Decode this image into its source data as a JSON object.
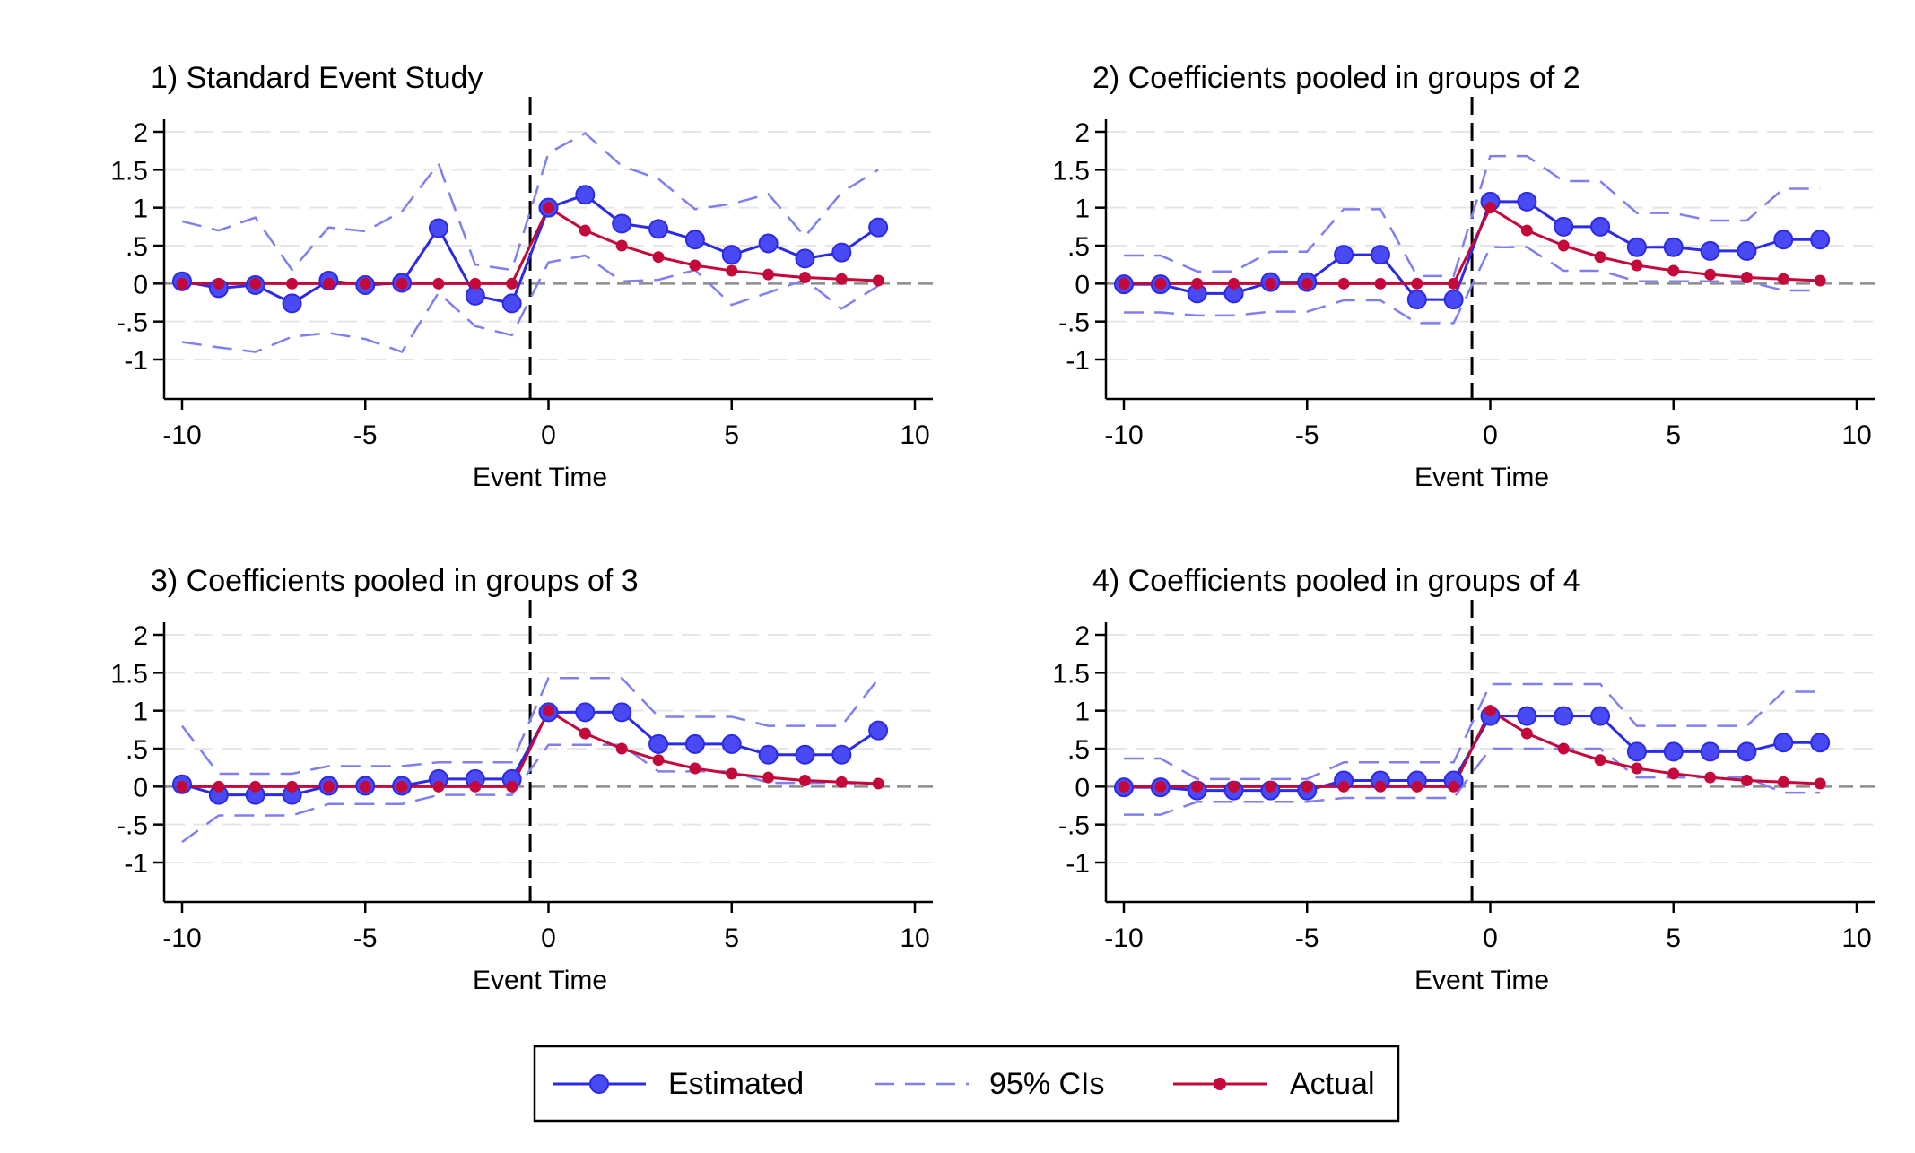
{
  "legend": {
    "items": [
      {
        "label": "Estimated",
        "color": "#2a2ae8",
        "style": "line-marker-large"
      },
      {
        "label": "95% CIs",
        "color": "#7f7ff2",
        "style": "dashed"
      },
      {
        "label": "Actual",
        "color": "#c4083a",
        "style": "line-marker-small"
      }
    ]
  },
  "colors": {
    "estimated": "#2a2ae8",
    "estimated_fill": "#4a4af5",
    "ci": "#7f7ff2",
    "actual": "#c4083a",
    "zero_line": "#8c8c8c",
    "grid": "#e6e6e6",
    "event_line": "#000000"
  },
  "chart_data": [
    {
      "type": "line",
      "title": "1) Standard Event Study",
      "xlabel": "Event Time",
      "ylabel": "",
      "xlim": [
        -10,
        10
      ],
      "ylim": [
        -1,
        2
      ],
      "xticks": [
        -10,
        -5,
        0,
        5,
        10
      ],
      "xtick_labels": [
        "-10",
        "-5",
        "0",
        "5",
        "10"
      ],
      "yticks": [
        -1,
        -0.5,
        0,
        0.5,
        1,
        1.5,
        2
      ],
      "ytick_labels": [
        "-1",
        "-.5",
        "0",
        ".5",
        "1",
        "1.5",
        "2"
      ],
      "event_line_x": -0.5,
      "grid": true,
      "x": [
        -10,
        -9,
        -8,
        -7,
        -6,
        -5,
        -4,
        -3,
        -2,
        -1,
        0,
        1,
        2,
        3,
        4,
        5,
        6,
        7,
        8,
        9
      ],
      "series": [
        {
          "name": "Estimated",
          "values": [
            0.03,
            -0.06,
            -0.02,
            -0.26,
            0.04,
            -0.02,
            0.01,
            0.73,
            -0.16,
            -0.26,
            1.0,
            1.17,
            0.79,
            0.72,
            0.58,
            0.38,
            0.53,
            0.33,
            0.41,
            0.74
          ]
        },
        {
          "name": "95% CIs",
          "values": [
            0.82,
            0.7,
            0.87,
            0.18,
            0.74,
            0.69,
            0.95,
            1.58,
            0.25,
            0.18,
            1.72,
            1.98,
            1.55,
            1.38,
            0.98,
            1.05,
            1.18,
            0.62,
            1.2,
            1.5
          ]
        },
        {
          "name": "95% CIs",
          "values": [
            -0.77,
            -0.84,
            -0.9,
            -0.7,
            -0.65,
            -0.73,
            -0.9,
            -0.12,
            -0.56,
            -0.68,
            0.28,
            0.37,
            0.03,
            0.05,
            0.18,
            -0.28,
            -0.12,
            0.05,
            -0.33,
            -0.03
          ]
        },
        {
          "name": "Actual",
          "values": [
            0,
            0,
            0,
            0,
            0,
            0,
            0,
            0,
            0,
            0,
            1.0,
            0.7,
            0.5,
            0.35,
            0.24,
            0.17,
            0.12,
            0.08,
            0.06,
            0.04
          ]
        }
      ]
    },
    {
      "type": "line",
      "title": "2) Coefficients pooled in groups of 2",
      "xlabel": "Event Time",
      "ylabel": "",
      "xlim": [
        -10,
        10
      ],
      "ylim": [
        -1,
        2
      ],
      "xticks": [
        -10,
        -5,
        0,
        5,
        10
      ],
      "xtick_labels": [
        "-10",
        "-5",
        "0",
        "5",
        "10"
      ],
      "yticks": [
        -1,
        -0.5,
        0,
        0.5,
        1,
        1.5,
        2
      ],
      "ytick_labels": [
        "-1",
        "-.5",
        "0",
        ".5",
        "1",
        "1.5",
        "2"
      ],
      "event_line_x": -0.5,
      "grid": true,
      "x": [
        -10,
        -9,
        -8,
        -7,
        -6,
        -5,
        -4,
        -3,
        -2,
        -1,
        0,
        1,
        2,
        3,
        4,
        5,
        6,
        7,
        8,
        9
      ],
      "series": [
        {
          "name": "Estimated",
          "values": [
            -0.01,
            -0.01,
            -0.13,
            -0.13,
            0.02,
            0.02,
            0.38,
            0.38,
            -0.21,
            -0.21,
            1.08,
            1.08,
            0.75,
            0.75,
            0.48,
            0.48,
            0.43,
            0.43,
            0.58,
            0.58
          ]
        },
        {
          "name": "95% CIs",
          "values": [
            0.37,
            0.37,
            0.16,
            0.16,
            0.42,
            0.42,
            0.98,
            0.98,
            0.1,
            0.1,
            1.68,
            1.68,
            1.35,
            1.35,
            0.93,
            0.93,
            0.83,
            0.83,
            1.25,
            1.25
          ]
        },
        {
          "name": "95% CIs",
          "values": [
            -0.38,
            -0.38,
            -0.42,
            -0.42,
            -0.37,
            -0.37,
            -0.22,
            -0.22,
            -0.52,
            -0.52,
            0.48,
            0.48,
            0.17,
            0.17,
            0.03,
            0.03,
            0.03,
            0.03,
            -0.09,
            -0.09
          ]
        },
        {
          "name": "Actual",
          "values": [
            0,
            0,
            0,
            0,
            0,
            0,
            0,
            0,
            0,
            0,
            1.0,
            0.7,
            0.5,
            0.35,
            0.24,
            0.17,
            0.12,
            0.08,
            0.06,
            0.04
          ]
        }
      ]
    },
    {
      "type": "line",
      "title": "3) Coefficients pooled in groups of 3",
      "xlabel": "Event Time",
      "ylabel": "",
      "xlim": [
        -10,
        10
      ],
      "ylim": [
        -1,
        2
      ],
      "xticks": [
        -10,
        -5,
        0,
        5,
        10
      ],
      "xtick_labels": [
        "-10",
        "-5",
        "0",
        "5",
        "10"
      ],
      "yticks": [
        -1,
        -0.5,
        0,
        0.5,
        1,
        1.5,
        2
      ],
      "ytick_labels": [
        "-1",
        "-.5",
        "0",
        ".5",
        "1",
        "1.5",
        "2"
      ],
      "event_line_x": -0.5,
      "grid": true,
      "x": [
        -10,
        -9,
        -8,
        -7,
        -6,
        -5,
        -4,
        -3,
        -2,
        -1,
        0,
        1,
        2,
        3,
        4,
        5,
        6,
        7,
        8,
        9
      ],
      "series": [
        {
          "name": "Estimated",
          "values": [
            0.03,
            -0.11,
            -0.11,
            -0.11,
            0.01,
            0.01,
            0.01,
            0.1,
            0.1,
            0.1,
            0.98,
            0.98,
            0.98,
            0.56,
            0.56,
            0.56,
            0.42,
            0.42,
            0.42,
            0.74
          ]
        },
        {
          "name": "95% CIs",
          "values": [
            0.8,
            0.17,
            0.17,
            0.17,
            0.27,
            0.27,
            0.27,
            0.32,
            0.32,
            0.32,
            1.43,
            1.43,
            1.43,
            0.92,
            0.92,
            0.92,
            0.8,
            0.8,
            0.8,
            1.42
          ]
        },
        {
          "name": "95% CIs",
          "values": [
            -0.73,
            -0.38,
            -0.38,
            -0.38,
            -0.23,
            -0.23,
            -0.23,
            -0.11,
            -0.11,
            -0.11,
            0.55,
            0.55,
            0.55,
            0.2,
            0.2,
            0.2,
            0.05,
            0.05,
            0.05,
            0.03
          ]
        },
        {
          "name": "Actual",
          "values": [
            0,
            0,
            0,
            0,
            0,
            0,
            0,
            0,
            0,
            0,
            1.0,
            0.7,
            0.5,
            0.35,
            0.24,
            0.17,
            0.12,
            0.08,
            0.06,
            0.04
          ]
        }
      ]
    },
    {
      "type": "line",
      "title": "4) Coefficients pooled in groups of 4",
      "xlabel": "Event Time",
      "ylabel": "",
      "xlim": [
        -10,
        10
      ],
      "ylim": [
        -1,
        2
      ],
      "xticks": [
        -10,
        -5,
        0,
        5,
        10
      ],
      "xtick_labels": [
        "-10",
        "-5",
        "0",
        "5",
        "10"
      ],
      "yticks": [
        -1,
        -0.5,
        0,
        0.5,
        1,
        1.5,
        2
      ],
      "ytick_labels": [
        "-1",
        "-.5",
        "0",
        ".5",
        "1",
        "1.5",
        "2"
      ],
      "event_line_x": -0.5,
      "grid": true,
      "x": [
        -10,
        -9,
        -8,
        -7,
        -6,
        -5,
        -4,
        -3,
        -2,
        -1,
        0,
        1,
        2,
        3,
        4,
        5,
        6,
        7,
        8,
        9
      ],
      "series": [
        {
          "name": "Estimated",
          "values": [
            -0.01,
            -0.01,
            -0.05,
            -0.05,
            -0.05,
            -0.05,
            0.08,
            0.08,
            0.08,
            0.08,
            0.93,
            0.93,
            0.93,
            0.93,
            0.46,
            0.46,
            0.46,
            0.46,
            0.58,
            0.58
          ]
        },
        {
          "name": "95% CIs",
          "values": [
            0.37,
            0.37,
            0.1,
            0.1,
            0.1,
            0.1,
            0.32,
            0.32,
            0.32,
            0.32,
            1.35,
            1.35,
            1.35,
            1.35,
            0.8,
            0.8,
            0.8,
            0.8,
            1.25,
            1.25
          ]
        },
        {
          "name": "95% CIs",
          "values": [
            -0.37,
            -0.37,
            -0.2,
            -0.2,
            -0.2,
            -0.2,
            -0.15,
            -0.15,
            -0.15,
            -0.15,
            0.5,
            0.5,
            0.5,
            0.5,
            0.12,
            0.12,
            0.12,
            0.12,
            -0.08,
            -0.08
          ]
        },
        {
          "name": "Actual",
          "values": [
            0,
            0,
            0,
            0,
            0,
            0,
            0,
            0,
            0,
            0,
            1.0,
            0.7,
            0.5,
            0.35,
            0.24,
            0.17,
            0.12,
            0.08,
            0.06,
            0.04
          ]
        }
      ]
    }
  ]
}
